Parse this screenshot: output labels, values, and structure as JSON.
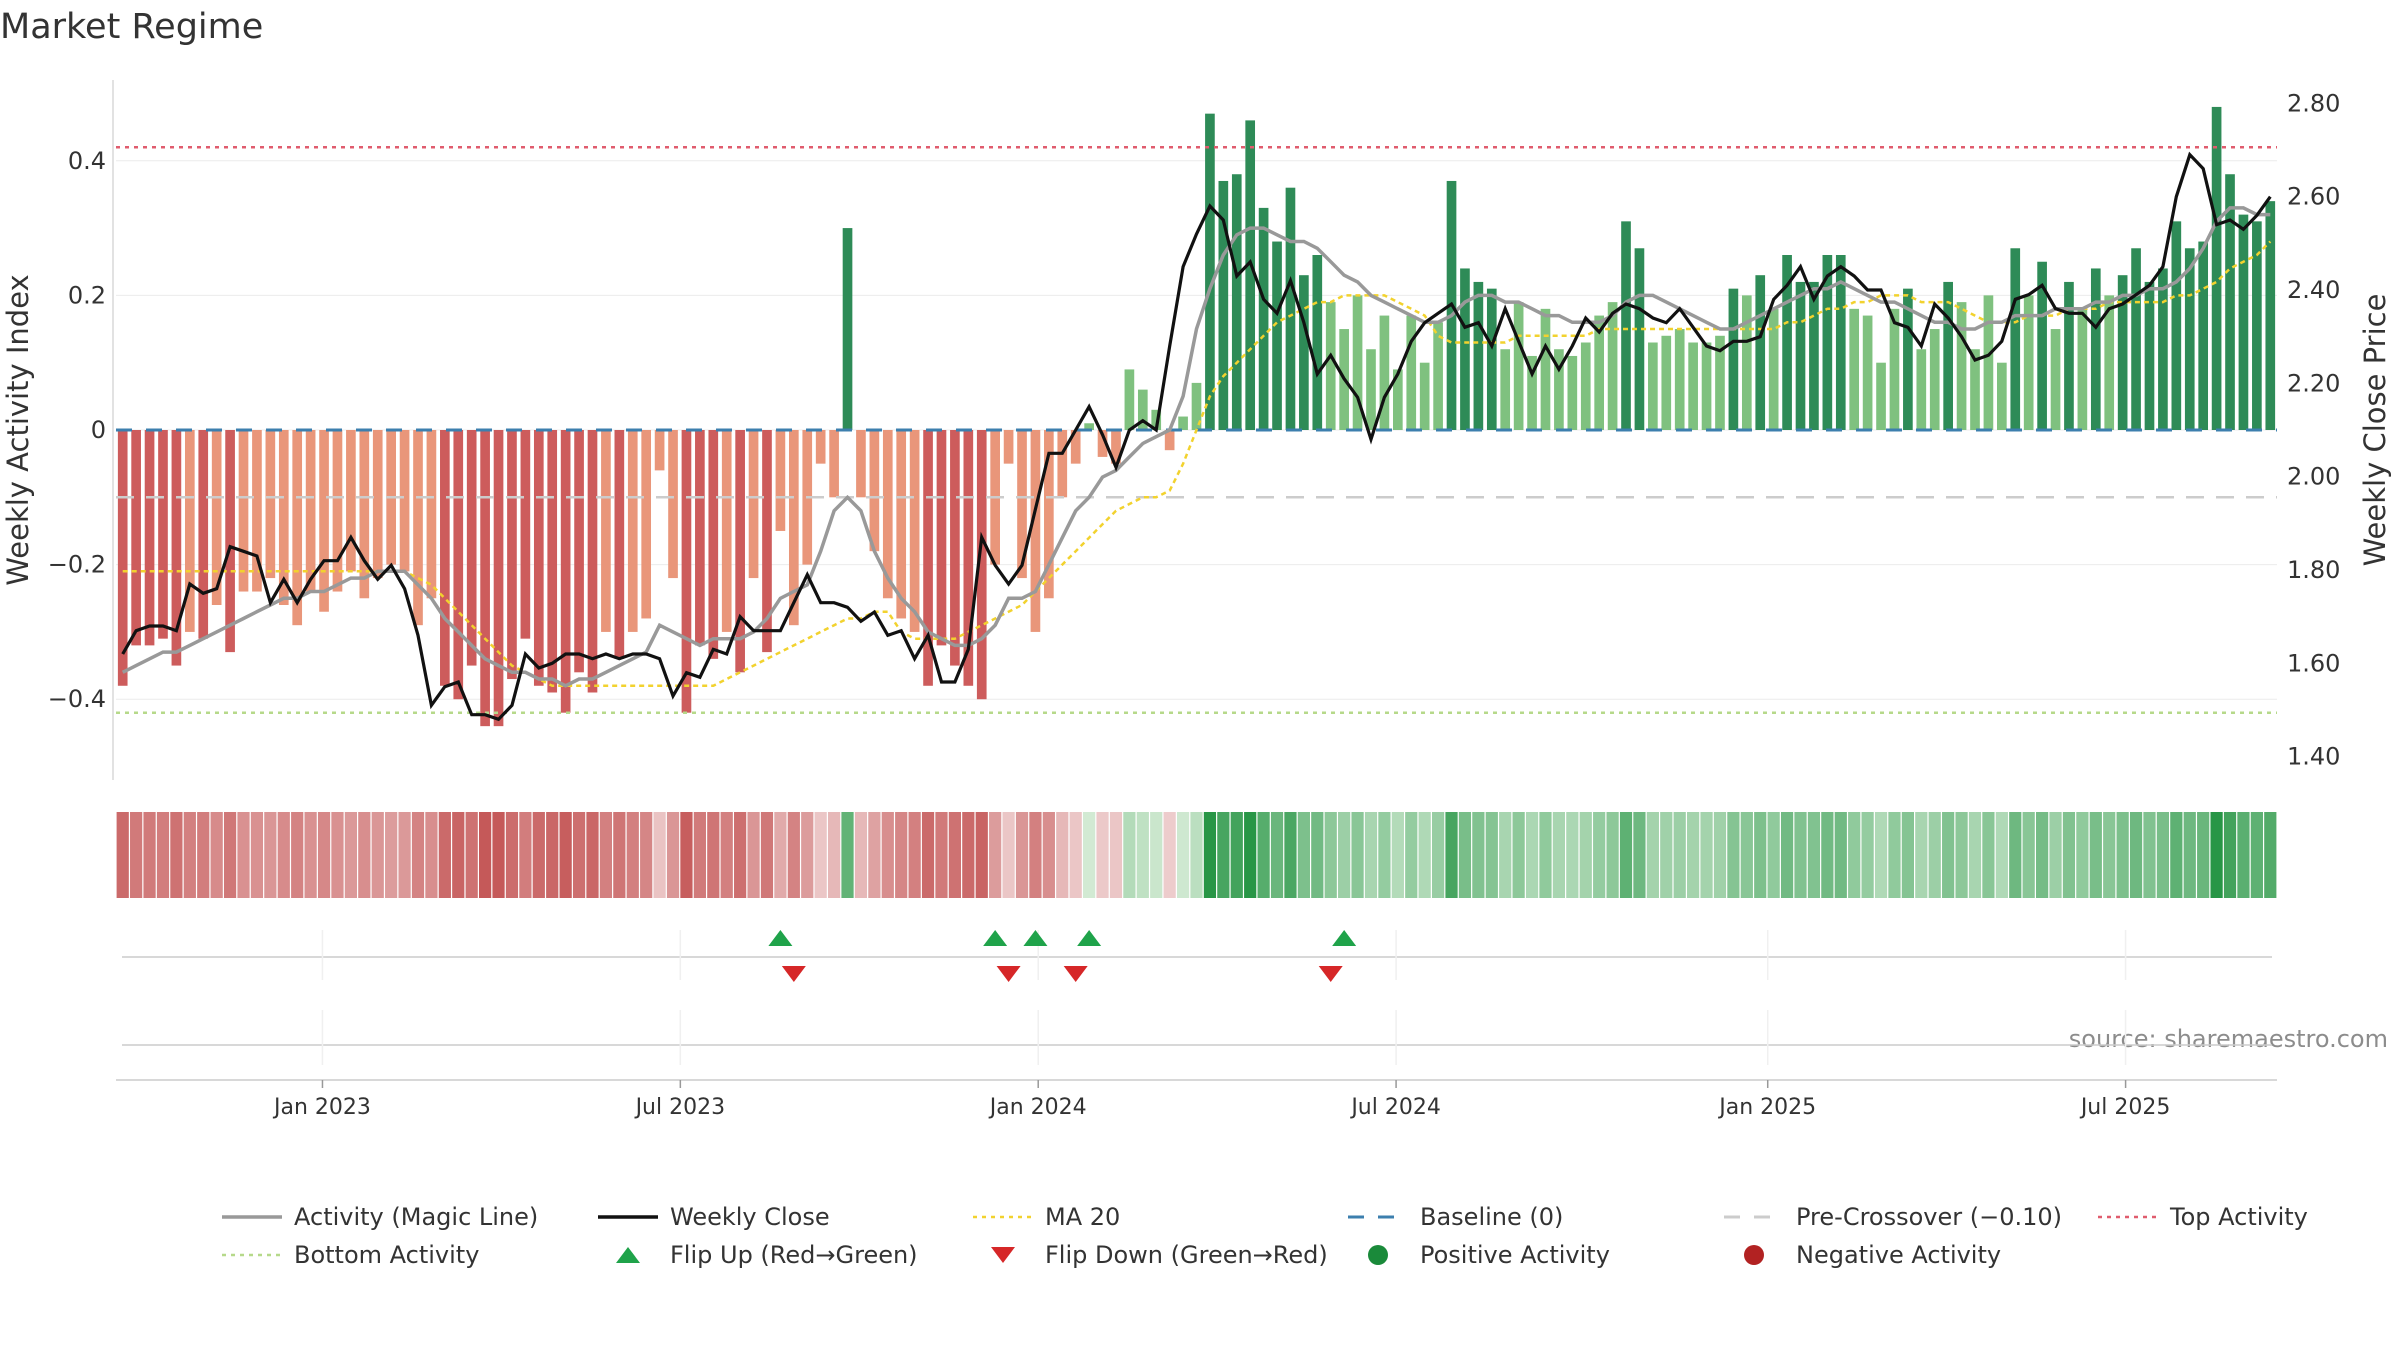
{
  "page_title": "Market Regime",
  "source_text": "source: sharemaestro.com",
  "chart_data": {
    "type": "bar",
    "title": "Market Regime",
    "ylabel_left": "Weekly Activity Index",
    "ylabel_right": "Weekly Close Price",
    "xlabel": "",
    "ylim_left": [
      -0.52,
      0.52
    ],
    "ylim_right": [
      1.35,
      2.85
    ],
    "yticks_left": [
      {
        "value": 0.4,
        "label": "0.4"
      },
      {
        "value": 0.2,
        "label": "0.2"
      },
      {
        "value": 0,
        "label": "0"
      },
      {
        "value": -0.2,
        "label": "−0.2"
      },
      {
        "value": -0.4,
        "label": "−0.4"
      }
    ],
    "yticks_right": [
      {
        "value": 2.8,
        "label": "2.80"
      },
      {
        "value": 2.6,
        "label": "2.60"
      },
      {
        "value": 2.4,
        "label": "2.40"
      },
      {
        "value": 2.2,
        "label": "2.20"
      },
      {
        "value": 2.0,
        "label": "2.00"
      },
      {
        "value": 1.8,
        "label": "1.80"
      },
      {
        "value": 1.6,
        "label": "1.60"
      },
      {
        "value": 1.4,
        "label": "1.40"
      }
    ],
    "x_range_weeks": [
      0,
      157
    ],
    "xticks": [
      {
        "week": 15,
        "label": "Jan 2023"
      },
      {
        "week": 41,
        "label": "Jul 2023"
      },
      {
        "week": 67,
        "label": "Jan 2024"
      },
      {
        "week": 93,
        "label": "Jul 2024"
      },
      {
        "week": 120,
        "label": "Jan 2025"
      },
      {
        "week": 146,
        "label": "Jul 2025"
      }
    ],
    "reference_lines": {
      "baseline": 0,
      "pre_crossover": -0.1,
      "top_activity": 0.42,
      "bottom_activity": -0.42
    },
    "activity_index": [
      -0.38,
      -0.32,
      -0.32,
      -0.31,
      -0.35,
      -0.3,
      -0.31,
      -0.26,
      -0.33,
      -0.24,
      -0.24,
      -0.22,
      -0.26,
      -0.29,
      -0.24,
      -0.27,
      -0.24,
      -0.21,
      -0.25,
      -0.22,
      -0.2,
      -0.21,
      -0.29,
      -0.25,
      -0.38,
      -0.4,
      -0.35,
      -0.44,
      -0.44,
      -0.37,
      -0.31,
      -0.38,
      -0.39,
      -0.42,
      -0.36,
      -0.39,
      -0.3,
      -0.34,
      -0.3,
      -0.28,
      -0.06,
      -0.22,
      -0.42,
      -0.32,
      -0.34,
      -0.3,
      -0.36,
      -0.22,
      -0.33,
      -0.15,
      -0.29,
      -0.2,
      -0.05,
      -0.1,
      0.3,
      -0.1,
      -0.18,
      -0.25,
      -0.28,
      -0.3,
      -0.38,
      -0.32,
      -0.35,
      -0.38,
      -0.4,
      -0.2,
      -0.05,
      -0.22,
      -0.3,
      -0.25,
      -0.1,
      -0.05,
      0.01,
      -0.04,
      -0.05,
      0.09,
      0.06,
      0.03,
      -0.03,
      0.02,
      0.07,
      0.47,
      0.37,
      0.38,
      0.46,
      0.33,
      0.28,
      0.36,
      0.23,
      0.26,
      0.19,
      0.15,
      0.2,
      0.12,
      0.17,
      0.09,
      0.17,
      0.1,
      0.16,
      0.37,
      0.24,
      0.22,
      0.21,
      0.12,
      0.19,
      0.11,
      0.18,
      0.12,
      0.11,
      0.13,
      0.17,
      0.19,
      0.31,
      0.27,
      0.13,
      0.14,
      0.15,
      0.13,
      0.13,
      0.14,
      0.21,
      0.2,
      0.23,
      0.18,
      0.26,
      0.22,
      0.22,
      0.26,
      0.26,
      0.18,
      0.17,
      0.1,
      0.18,
      0.21,
      0.12,
      0.15,
      0.22,
      0.19,
      0.12,
      0.2,
      0.1,
      0.27,
      0.2,
      0.25,
      0.15,
      0.22,
      0.18,
      0.24,
      0.2,
      0.23,
      0.27,
      0.22,
      0.24,
      0.31,
      0.27,
      0.28,
      0.48,
      0.38,
      0.32,
      0.31,
      0.34
    ],
    "weekly_close": [
      1.62,
      1.67,
      1.68,
      1.68,
      1.67,
      1.77,
      1.75,
      1.76,
      1.85,
      1.84,
      1.83,
      1.73,
      1.78,
      1.73,
      1.78,
      1.82,
      1.82,
      1.87,
      1.82,
      1.78,
      1.81,
      1.76,
      1.66,
      1.51,
      1.55,
      1.56,
      1.49,
      1.49,
      1.48,
      1.51,
      1.62,
      1.59,
      1.6,
      1.62,
      1.62,
      1.61,
      1.62,
      1.61,
      1.62,
      1.62,
      1.61,
      1.53,
      1.58,
      1.57,
      1.63,
      1.62,
      1.7,
      1.67,
      1.67,
      1.67,
      1.73,
      1.79,
      1.73,
      1.73,
      1.72,
      1.69,
      1.71,
      1.66,
      1.67,
      1.61,
      1.66,
      1.56,
      1.56,
      1.63,
      1.87,
      1.81,
      1.77,
      1.81,
      1.93,
      2.05,
      2.05,
      2.1,
      2.15,
      2.09,
      2.02,
      2.1,
      2.12,
      2.1,
      2.28,
      2.45,
      2.52,
      2.58,
      2.55,
      2.43,
      2.46,
      2.38,
      2.35,
      2.42,
      2.33,
      2.22,
      2.26,
      2.21,
      2.17,
      2.08,
      2.17,
      2.22,
      2.29,
      2.33,
      2.35,
      2.37,
      2.32,
      2.33,
      2.28,
      2.36,
      2.29,
      2.22,
      2.28,
      2.23,
      2.28,
      2.34,
      2.31,
      2.35,
      2.37,
      2.36,
      2.34,
      2.33,
      2.36,
      2.32,
      2.28,
      2.27,
      2.29,
      2.29,
      2.3,
      2.38,
      2.41,
      2.45,
      2.38,
      2.43,
      2.45,
      2.43,
      2.4,
      2.4,
      2.33,
      2.32,
      2.28,
      2.37,
      2.34,
      2.3,
      2.25,
      2.26,
      2.29,
      2.38,
      2.39,
      2.41,
      2.36,
      2.35,
      2.35,
      2.32,
      2.36,
      2.37,
      2.39,
      2.41,
      2.45,
      2.6,
      2.69,
      2.66,
      2.54,
      2.55,
      2.53,
      2.56,
      2.6
    ],
    "activity_magic_line": [
      -0.36,
      -0.35,
      -0.34,
      -0.33,
      -0.33,
      -0.32,
      -0.31,
      -0.3,
      -0.29,
      -0.28,
      -0.27,
      -0.26,
      -0.25,
      -0.25,
      -0.24,
      -0.24,
      -0.23,
      -0.22,
      -0.22,
      -0.21,
      -0.21,
      -0.21,
      -0.23,
      -0.25,
      -0.28,
      -0.3,
      -0.32,
      -0.34,
      -0.35,
      -0.36,
      -0.36,
      -0.37,
      -0.37,
      -0.38,
      -0.37,
      -0.37,
      -0.36,
      -0.35,
      -0.34,
      -0.33,
      -0.29,
      -0.3,
      -0.31,
      -0.32,
      -0.31,
      -0.31,
      -0.31,
      -0.3,
      -0.28,
      -0.25,
      -0.24,
      -0.23,
      -0.18,
      -0.12,
      -0.1,
      -0.12,
      -0.18,
      -0.22,
      -0.25,
      -0.27,
      -0.3,
      -0.31,
      -0.32,
      -0.32,
      -0.31,
      -0.29,
      -0.25,
      -0.25,
      -0.24,
      -0.2,
      -0.16,
      -0.12,
      -0.1,
      -0.07,
      -0.06,
      -0.04,
      -0.02,
      -0.01,
      0.0,
      0.05,
      0.15,
      0.21,
      0.26,
      0.29,
      0.3,
      0.3,
      0.29,
      0.28,
      0.28,
      0.27,
      0.25,
      0.23,
      0.22,
      0.2,
      0.19,
      0.18,
      0.17,
      0.16,
      0.16,
      0.17,
      0.19,
      0.2,
      0.2,
      0.19,
      0.19,
      0.18,
      0.17,
      0.17,
      0.16,
      0.16,
      0.16,
      0.17,
      0.19,
      0.2,
      0.2,
      0.19,
      0.18,
      0.17,
      0.16,
      0.15,
      0.15,
      0.16,
      0.17,
      0.18,
      0.19,
      0.2,
      0.21,
      0.21,
      0.22,
      0.21,
      0.2,
      0.19,
      0.19,
      0.18,
      0.17,
      0.16,
      0.16,
      0.15,
      0.15,
      0.16,
      0.16,
      0.17,
      0.17,
      0.17,
      0.18,
      0.18,
      0.18,
      0.19,
      0.19,
      0.2,
      0.2,
      0.21,
      0.21,
      0.22,
      0.24,
      0.27,
      0.31,
      0.33,
      0.33,
      0.32,
      0.32
    ],
    "ma20": [
      -0.21,
      -0.21,
      -0.21,
      -0.21,
      -0.21,
      -0.21,
      -0.21,
      -0.21,
      -0.21,
      -0.21,
      -0.21,
      -0.21,
      -0.21,
      -0.21,
      -0.21,
      -0.21,
      -0.21,
      -0.21,
      -0.21,
      -0.21,
      -0.21,
      -0.21,
      -0.22,
      -0.23,
      -0.25,
      -0.27,
      -0.29,
      -0.31,
      -0.33,
      -0.35,
      -0.36,
      -0.37,
      -0.38,
      -0.38,
      -0.38,
      -0.38,
      -0.38,
      -0.38,
      -0.38,
      -0.38,
      -0.38,
      -0.38,
      -0.38,
      -0.38,
      -0.38,
      -0.37,
      -0.36,
      -0.35,
      -0.34,
      -0.33,
      -0.32,
      -0.31,
      -0.3,
      -0.29,
      -0.28,
      -0.28,
      -0.27,
      -0.27,
      -0.3,
      -0.31,
      -0.31,
      -0.31,
      -0.31,
      -0.3,
      -0.29,
      -0.28,
      -0.27,
      -0.26,
      -0.24,
      -0.22,
      -0.2,
      -0.18,
      -0.16,
      -0.14,
      -0.12,
      -0.11,
      -0.1,
      -0.1,
      -0.09,
      -0.05,
      0.0,
      0.05,
      0.08,
      0.1,
      0.12,
      0.14,
      0.16,
      0.17,
      0.18,
      0.19,
      0.19,
      0.2,
      0.2,
      0.2,
      0.2,
      0.19,
      0.18,
      0.17,
      0.14,
      0.13,
      0.13,
      0.13,
      0.13,
      0.13,
      0.14,
      0.14,
      0.14,
      0.14,
      0.14,
      0.14,
      0.15,
      0.15,
      0.15,
      0.15,
      0.15,
      0.15,
      0.15,
      0.15,
      0.15,
      0.15,
      0.15,
      0.15,
      0.15,
      0.15,
      0.16,
      0.16,
      0.17,
      0.18,
      0.18,
      0.19,
      0.19,
      0.2,
      0.2,
      0.2,
      0.19,
      0.19,
      0.19,
      0.18,
      0.17,
      0.16,
      0.16,
      0.16,
      0.17,
      0.17,
      0.17,
      0.18,
      0.18,
      0.18,
      0.19,
      0.19,
      0.19,
      0.19,
      0.19,
      0.2,
      0.2,
      0.21,
      0.22,
      0.24,
      0.25,
      0.26,
      0.28
    ],
    "flip_up_weeks": [
      49,
      65,
      68,
      72,
      91
    ],
    "flip_down_weeks": [
      50,
      66,
      71,
      90
    ],
    "legend": [
      {
        "label": "Activity (Magic Line)",
        "symbol": "line",
        "color": "#999999"
      },
      {
        "label": "Weekly Close",
        "symbol": "line",
        "color": "#111111"
      },
      {
        "label": "MA 20",
        "symbol": "dotted",
        "color": "#f2d22e"
      },
      {
        "label": "Baseline (0)",
        "symbol": "dashed",
        "color": "#3c7fae"
      },
      {
        "label": "Pre-Crossover (−0.10)",
        "symbol": "dashed",
        "color": "#cccccc"
      },
      {
        "label": "Top Activity",
        "symbol": "dotted",
        "color": "#e05c6e"
      },
      {
        "label": "Bottom Activity",
        "symbol": "dotted",
        "color": "#b6d98a"
      },
      {
        "label": "Flip Up (Red→Green)",
        "symbol": "triangle-up",
        "color": "#1fa34a"
      },
      {
        "label": "Flip Down (Green→Red)",
        "symbol": "triangle-down",
        "color": "#d62728"
      },
      {
        "label": "Positive Activity",
        "symbol": "dot",
        "color": "#1a8a3a"
      },
      {
        "label": "Negative Activity",
        "symbol": "dot",
        "color": "#b22222"
      }
    ],
    "legend_placement": "bottom",
    "grid": true
  },
  "colors": {
    "bar_positive_dark": "#2e8b57",
    "bar_positive_light": "#7fc17f",
    "bar_negative_dark": "#cd5c5c",
    "bar_negative_light": "#e9967a",
    "close_line": "#111111",
    "magic_line": "#999999",
    "ma20": "#f2d22e",
    "baseline": "#3c7fae",
    "pre_crossover": "#cccccc",
    "top_activity": "#e05c6e",
    "bottom_activity": "#b6d98a"
  }
}
